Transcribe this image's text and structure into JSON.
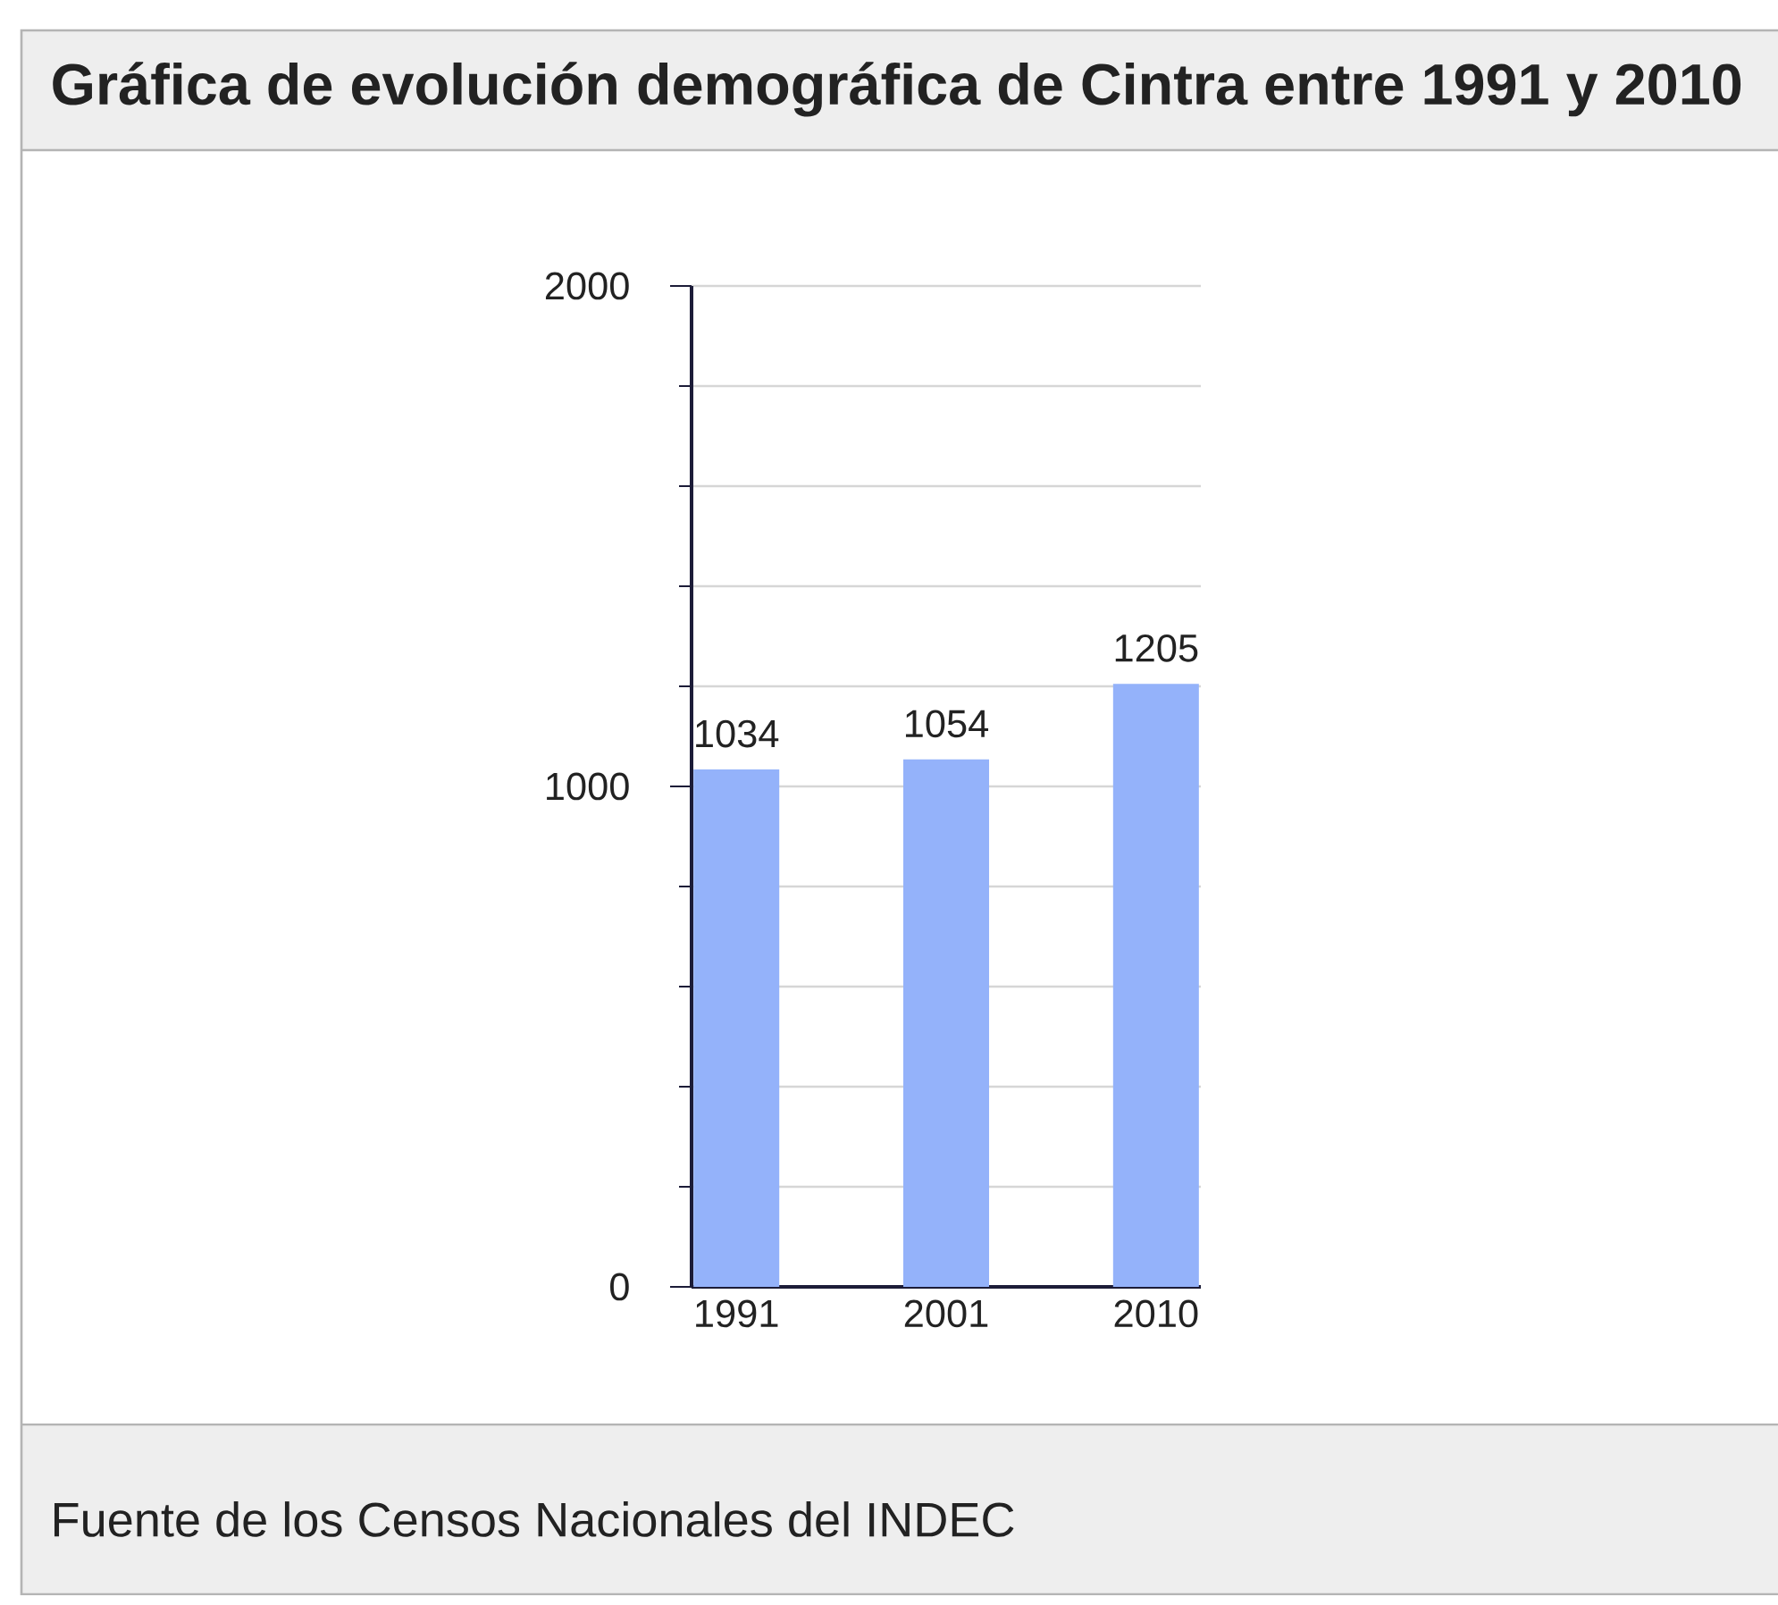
{
  "chart_data": {
    "type": "bar",
    "title": "Gráfica de evolución demográfica de Cintra entre 1991 y 2010",
    "categories": [
      "1991",
      "2001",
      "2010"
    ],
    "values": [
      1034,
      1054,
      1205
    ],
    "color": "#94b2fa",
    "data_labels": true,
    "ylim": [
      0,
      2000
    ],
    "yticks": [
      0,
      {
        "value": 200,
        "label": null
      },
      {
        "value": 400,
        "label": null
      },
      {
        "value": 600,
        "label": null
      },
      {
        "value": 800,
        "label": null
      },
      1000,
      {
        "value": 1200,
        "label": null
      },
      {
        "value": 1400,
        "label": null
      },
      {
        "value": 1600,
        "label": null
      },
      {
        "value": 1800,
        "label": null
      },
      2000
    ],
    "grid": "y",
    "annotations": [
      "Fuente de los Censos Nacionales del INDEC"
    ]
  }
}
